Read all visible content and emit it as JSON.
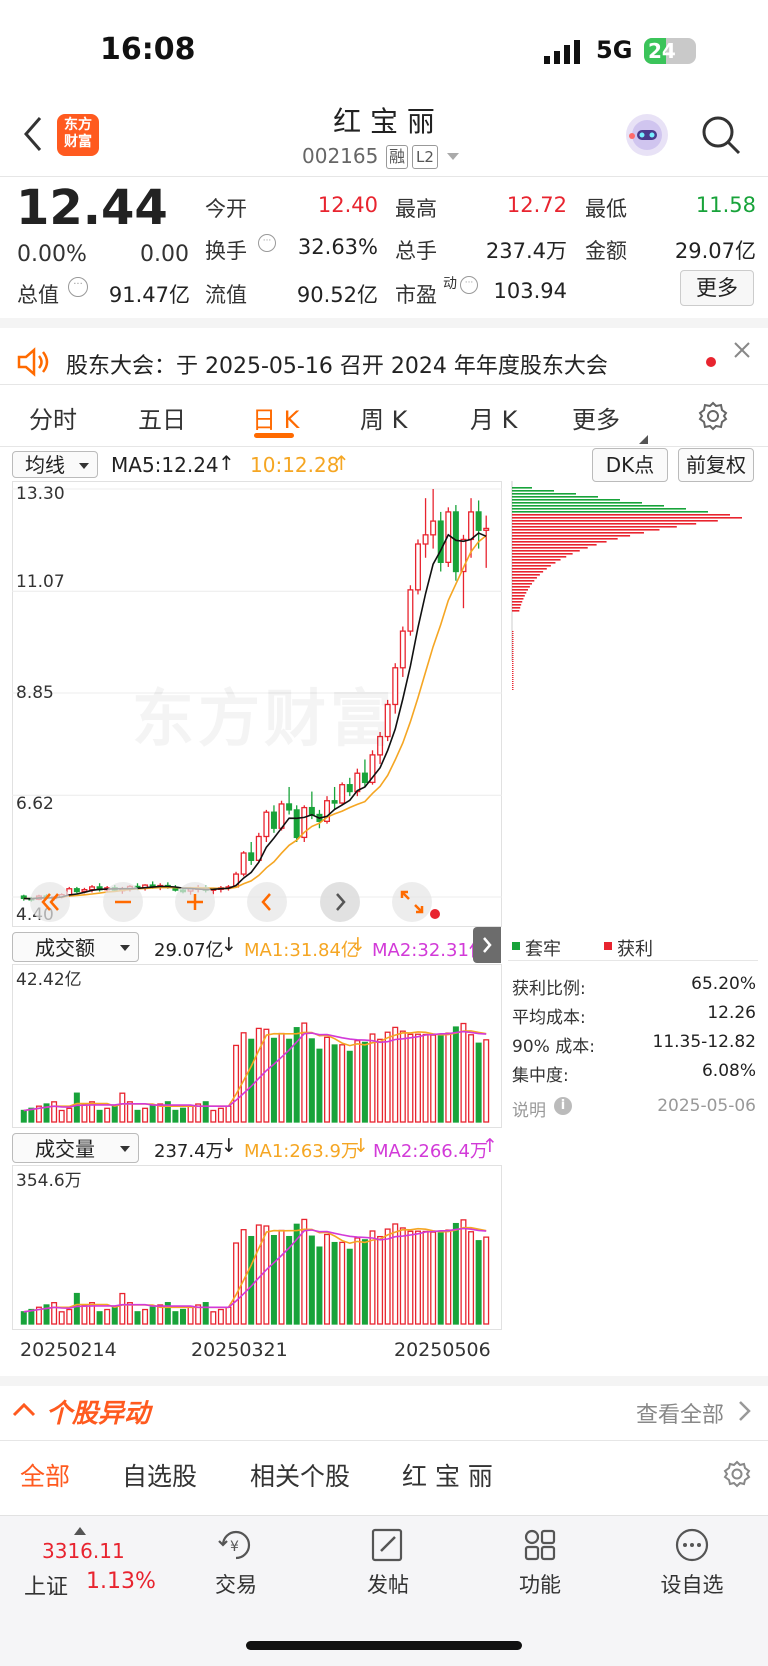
{
  "status_bar": {
    "time": "16:08",
    "network": "5G",
    "battery": "24"
  },
  "header": {
    "app_logo": "东方\n财富",
    "stock_name": "红 宝 丽",
    "stock_code": "002165",
    "badge_margin": "融",
    "badge_level": "L2"
  },
  "quote": {
    "price": "12.44",
    "change_pct": "0.00%",
    "change_amt": "0.00",
    "open_label": "今开",
    "open": "12.40",
    "high_label": "最高",
    "high": "12.72",
    "low_label": "最低",
    "low": "11.58",
    "turnover_label": "换手",
    "turnover": "32.63%",
    "volume_label": "总手",
    "volume": "237.4万",
    "amount_label": "金额",
    "amount": "29.07亿",
    "mktcap_label": "总值",
    "mktcap": "91.47亿",
    "float_label": "流值",
    "float": "90.52亿",
    "pe_label": "市盈",
    "pe_sup": "动",
    "pe": "103.94",
    "more_button": "更多"
  },
  "notice": {
    "text": "股东大会：于 2025-05-16 召开 2024 年年度股东大会"
  },
  "tabs": [
    "分时",
    "五日",
    "日 K",
    "周 K",
    "月 K",
    "更多"
  ],
  "active_tab": "日 K",
  "kline_toolbar": {
    "indicator": "均线",
    "ma5": "MA5:12.24",
    "ma10": "10:12.28",
    "dk_label": "DK点",
    "adjust": "前复权"
  },
  "price_axis": [
    "13.30",
    "11.07",
    "8.85",
    "6.62",
    "4.40"
  ],
  "watermark": "东方财富",
  "chip_legend": {
    "trapped": "套牢",
    "profit": "获利"
  },
  "chip_stats": [
    {
      "label": "获利比例:",
      "value": "65.20%"
    },
    {
      "label": "平均成本:",
      "value": "12.26"
    },
    {
      "label": "90% 成本:",
      "value": "11.35-12.82"
    },
    {
      "label": "集中度:",
      "value": "6.08%"
    }
  ],
  "chip_note": {
    "label": "说明",
    "date": "2025-05-06"
  },
  "amount_panel": {
    "selector": "成交额",
    "value": "29.07亿",
    "ma1": "MA1:31.84亿",
    "ma2": "MA2:32.31亿",
    "axis_max": "42.42亿"
  },
  "volume_panel": {
    "selector": "成交量",
    "value": "237.4万",
    "ma1": "MA1:263.9万",
    "ma2": "MA2:266.4万",
    "axis_max": "354.6万"
  },
  "date_axis": [
    "20250214",
    "20250321",
    "20250506"
  ],
  "movement": {
    "title": "个股异动",
    "view_all": "查看全部"
  },
  "subtabs": [
    "全部",
    "自选股",
    "相关个股",
    "红 宝 丽"
  ],
  "bottom_nav": {
    "index_value": "3316.11",
    "index_name": "上证",
    "index_change": "1.13%",
    "items": [
      "交易",
      "发帖",
      "功能",
      "设自选"
    ]
  },
  "colors": {
    "up": "#e8242f",
    "down": "#18a33a",
    "accent": "#ff6a00",
    "ma1": "#f5a623",
    "ma2": "#d23ad8"
  },
  "chart_data": {
    "type": "candlestick",
    "period": "daily",
    "x_range": [
      "20250214",
      "20250506"
    ],
    "ylim": [
      4.4,
      13.3
    ],
    "candles": [
      [
        4.42,
        4.45,
        4.32,
        4.37
      ],
      [
        4.37,
        4.4,
        4.3,
        4.35
      ],
      [
        4.35,
        4.45,
        4.33,
        4.42
      ],
      [
        4.42,
        4.46,
        4.36,
        4.38
      ],
      [
        4.38,
        4.42,
        4.32,
        4.4
      ],
      [
        4.4,
        4.48,
        4.37,
        4.45
      ],
      [
        4.45,
        4.62,
        4.4,
        4.58
      ],
      [
        4.58,
        4.62,
        4.48,
        4.52
      ],
      [
        4.52,
        4.6,
        4.48,
        4.56
      ],
      [
        4.56,
        4.66,
        4.5,
        4.62
      ],
      [
        4.62,
        4.7,
        4.52,
        4.56
      ],
      [
        4.56,
        4.64,
        4.5,
        4.6
      ],
      [
        4.6,
        4.66,
        4.52,
        4.55
      ],
      [
        4.55,
        4.62,
        4.47,
        4.57
      ],
      [
        4.57,
        4.66,
        4.52,
        4.63
      ],
      [
        4.63,
        4.7,
        4.55,
        4.6
      ],
      [
        4.6,
        4.68,
        4.54,
        4.66
      ],
      [
        4.66,
        4.74,
        4.58,
        4.62
      ],
      [
        4.62,
        4.7,
        4.55,
        4.65
      ],
      [
        4.65,
        4.72,
        4.58,
        4.61
      ],
      [
        4.61,
        4.66,
        4.52,
        4.55
      ],
      [
        4.55,
        4.6,
        4.48,
        4.53
      ],
      [
        4.53,
        4.62,
        4.45,
        4.58
      ],
      [
        4.58,
        4.66,
        4.5,
        4.6
      ],
      [
        4.6,
        4.66,
        4.5,
        4.55
      ],
      [
        4.55,
        4.6,
        4.46,
        4.58
      ],
      [
        4.58,
        4.64,
        4.5,
        4.6
      ],
      [
        4.6,
        4.66,
        4.54,
        4.62
      ],
      [
        4.62,
        4.95,
        4.6,
        4.9
      ],
      [
        4.9,
        5.4,
        4.85,
        5.36
      ],
      [
        5.36,
        5.6,
        5.1,
        5.2
      ],
      [
        5.2,
        5.8,
        5.15,
        5.72
      ],
      [
        5.72,
        6.3,
        5.6,
        6.25
      ],
      [
        6.25,
        6.4,
        5.8,
        5.9
      ],
      [
        5.9,
        6.5,
        5.85,
        6.43
      ],
      [
        6.43,
        6.8,
        6.2,
        6.3
      ],
      [
        6.3,
        6.4,
        5.6,
        5.7
      ],
      [
        5.7,
        6.4,
        5.6,
        6.35
      ],
      [
        6.35,
        6.7,
        6.1,
        6.2
      ],
      [
        6.2,
        6.3,
        5.9,
        6.05
      ],
      [
        6.05,
        6.6,
        6.0,
        6.5
      ],
      [
        6.5,
        6.8,
        6.3,
        6.45
      ],
      [
        6.45,
        6.9,
        6.4,
        6.85
      ],
      [
        6.85,
        7.0,
        6.6,
        6.7
      ],
      [
        6.7,
        7.2,
        6.6,
        7.1
      ],
      [
        7.1,
        7.4,
        6.8,
        6.9
      ],
      [
        6.9,
        7.6,
        6.85,
        7.5
      ],
      [
        7.5,
        8.0,
        7.3,
        7.9
      ],
      [
        7.9,
        8.7,
        7.8,
        8.6
      ],
      [
        8.6,
        9.5,
        8.4,
        9.4
      ],
      [
        9.4,
        10.3,
        9.2,
        10.2
      ],
      [
        10.2,
        11.2,
        10.1,
        11.1
      ],
      [
        11.1,
        12.2,
        11.0,
        12.1
      ],
      [
        12.1,
        13.1,
        11.8,
        12.3
      ],
      [
        12.3,
        13.3,
        12.0,
        12.6
      ],
      [
        12.6,
        12.8,
        11.5,
        11.7
      ],
      [
        11.7,
        12.9,
        11.6,
        12.8
      ],
      [
        12.8,
        12.95,
        11.3,
        11.5
      ],
      [
        11.5,
        12.3,
        10.7,
        12.2
      ],
      [
        12.2,
        13.1,
        11.8,
        12.8
      ],
      [
        12.8,
        13.05,
        12.0,
        12.4
      ],
      [
        12.4,
        12.72,
        11.58,
        12.44
      ]
    ]
  }
}
